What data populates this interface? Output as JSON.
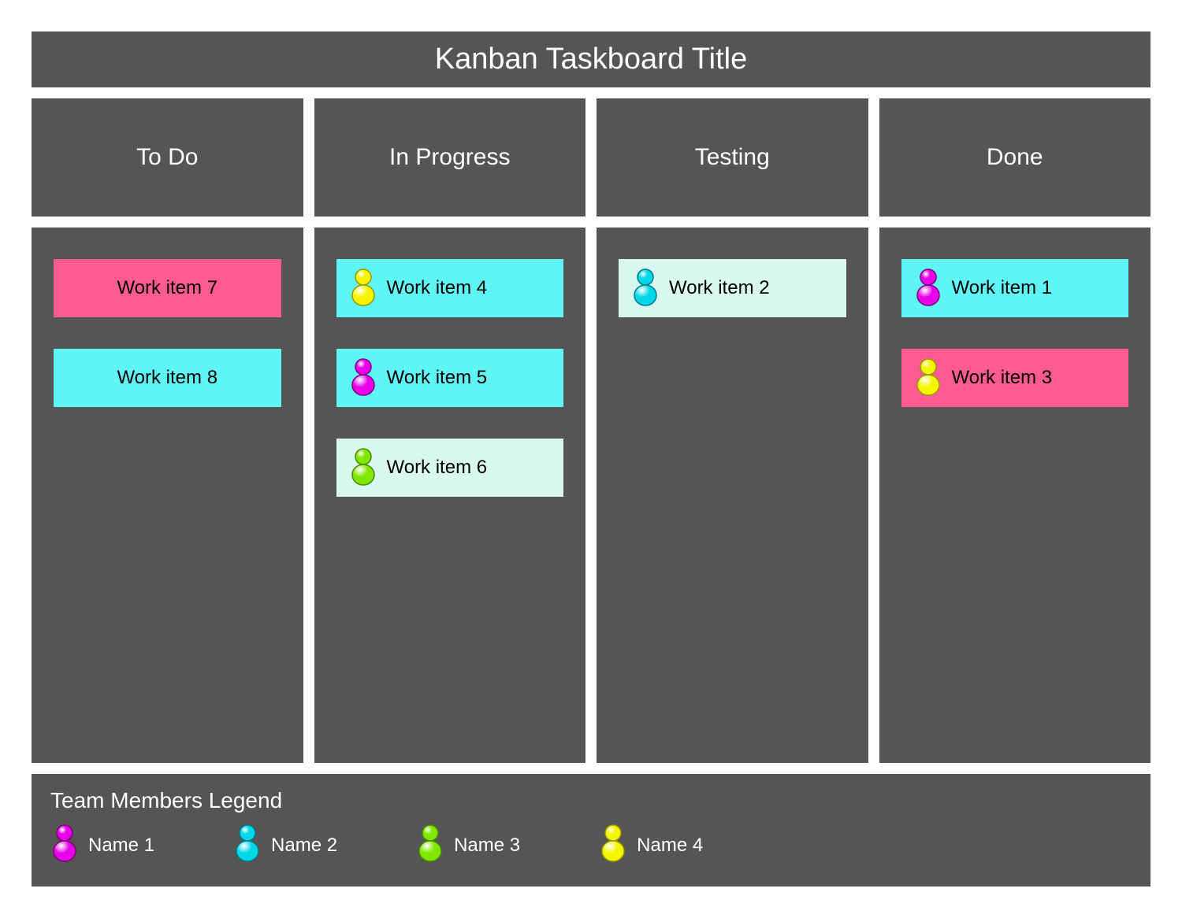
{
  "board": {
    "title": "Kanban Taskboard Title",
    "panel_bg": "#555555",
    "text_color": "#ffffff",
    "title_fontsize": 38,
    "header_fontsize": 30,
    "card_fontsize": 24
  },
  "card_colors": {
    "pink": "#ff5a93",
    "cyan": "#60f5f5",
    "lightcyan": "#d8f8f0"
  },
  "avatar_colors": {
    "magenta": {
      "fill": "#e800e8",
      "stroke": "#7a007a"
    },
    "cyan": {
      "fill": "#00d8e8",
      "stroke": "#007a8a"
    },
    "green": {
      "fill": "#80e800",
      "stroke": "#4a8a00"
    },
    "yellow": {
      "fill": "#f5f500",
      "stroke": "#9a9a00"
    }
  },
  "columns": [
    {
      "title": "To Do",
      "cards": [
        {
          "label": "Work item 7",
          "bg": "pink",
          "avatar": null
        },
        {
          "label": "Work item 8",
          "bg": "cyan",
          "avatar": null
        }
      ]
    },
    {
      "title": "In Progress",
      "cards": [
        {
          "label": "Work item 4",
          "bg": "cyan",
          "avatar": "yellow"
        },
        {
          "label": "Work item 5",
          "bg": "cyan",
          "avatar": "magenta"
        },
        {
          "label": "Work item 6",
          "bg": "lightcyan",
          "avatar": "green"
        }
      ]
    },
    {
      "title": "Testing",
      "cards": [
        {
          "label": "Work item 2",
          "bg": "lightcyan",
          "avatar": "cyan"
        }
      ]
    },
    {
      "title": "Done",
      "cards": [
        {
          "label": "Work item 1",
          "bg": "cyan",
          "avatar": "magenta"
        },
        {
          "label": "Work item 3",
          "bg": "pink",
          "avatar": "yellow"
        }
      ]
    }
  ],
  "legend": {
    "title": "Team Members Legend",
    "items": [
      {
        "label": "Name 1",
        "avatar": "magenta"
      },
      {
        "label": "Name 2",
        "avatar": "cyan"
      },
      {
        "label": "Name 3",
        "avatar": "green"
      },
      {
        "label": "Name 4",
        "avatar": "yellow"
      }
    ]
  }
}
